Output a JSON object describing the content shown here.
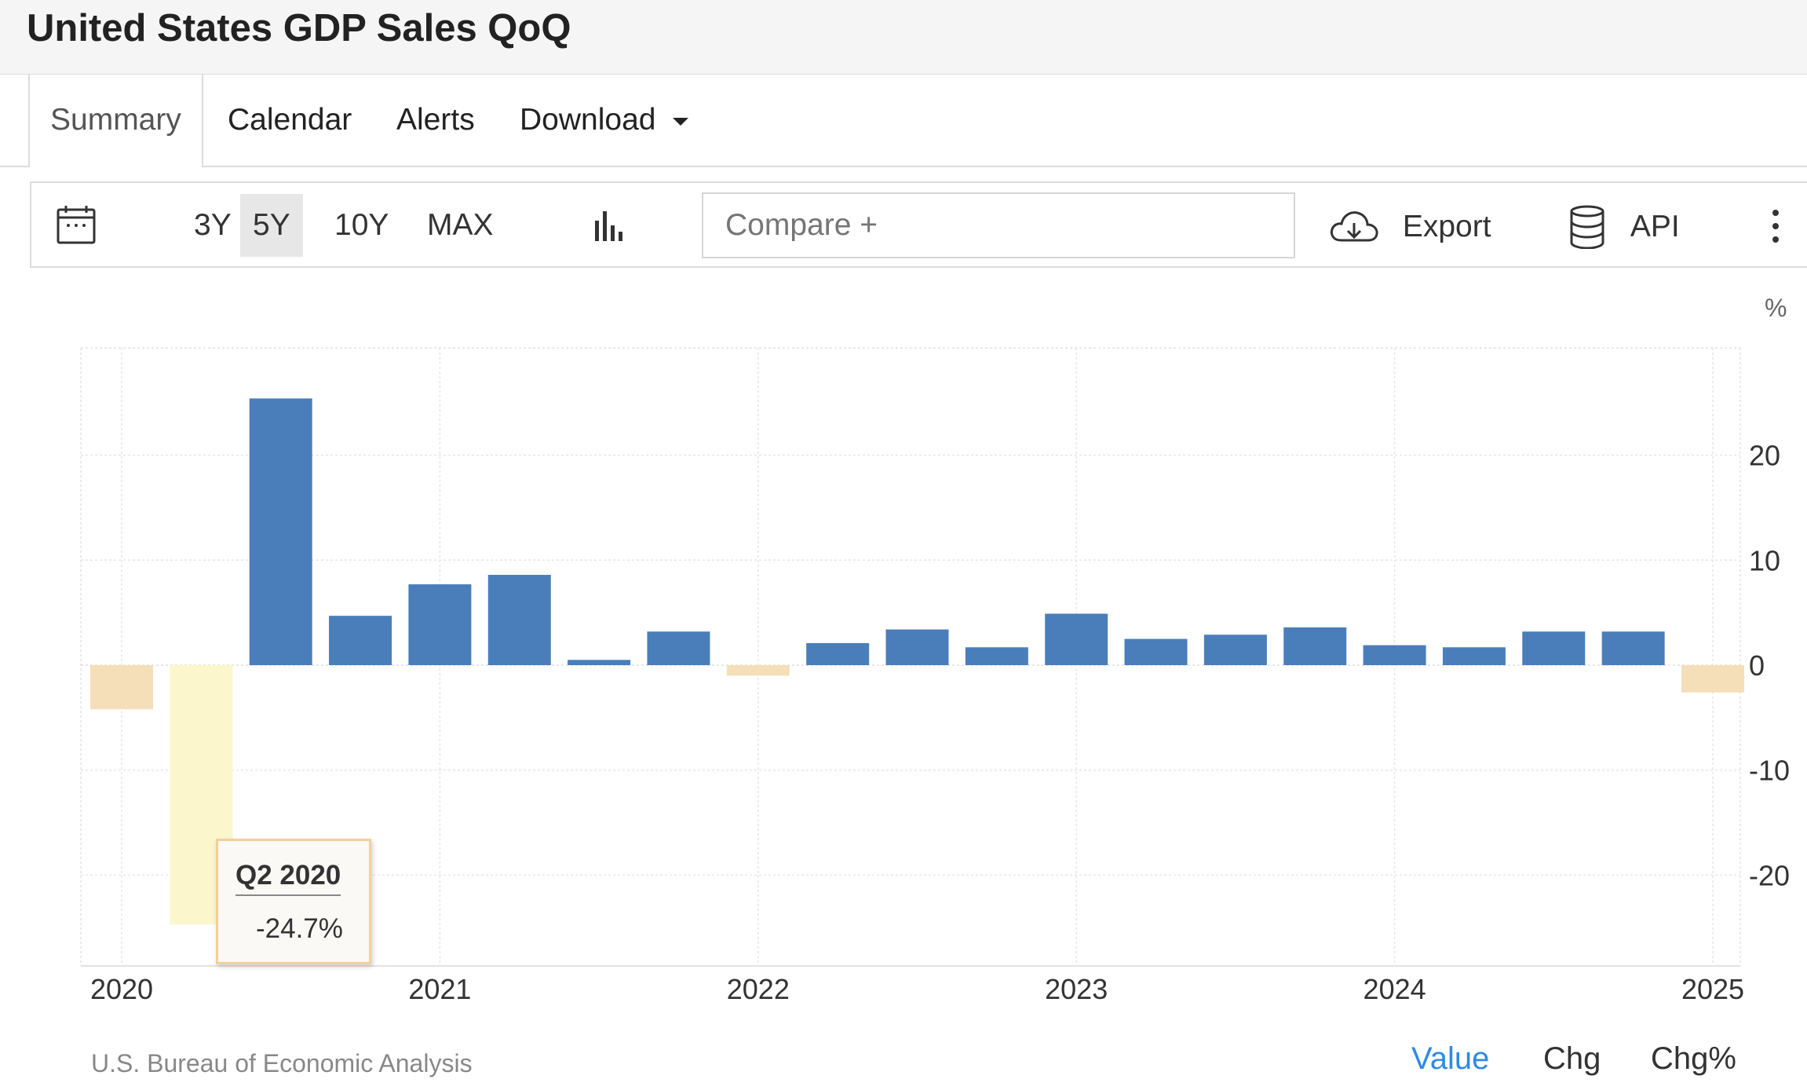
{
  "header": {
    "title": "United States GDP Sales QoQ"
  },
  "tabs": [
    {
      "label": "Summary",
      "active": true
    },
    {
      "label": "Calendar"
    },
    {
      "label": "Alerts"
    },
    {
      "label": "Download",
      "has_dropdown": true
    }
  ],
  "toolbar": {
    "ranges": [
      {
        "label": "3Y"
      },
      {
        "label": "5Y",
        "active": true
      },
      {
        "label": "10Y"
      },
      {
        "label": "MAX"
      }
    ],
    "compare_placeholder": "Compare +",
    "export_label": "Export",
    "api_label": "API",
    "icons": [
      "calendar-icon",
      "bar-chart-icon",
      "cloud-download-icon",
      "database-icon",
      "more-vertical-icon"
    ]
  },
  "chart_data": {
    "type": "bar",
    "unit": "%",
    "categories": [
      "Q1 2020",
      "Q2 2020",
      "Q3 2020",
      "Q4 2020",
      "Q1 2021",
      "Q2 2021",
      "Q3 2021",
      "Q4 2021",
      "Q1 2022",
      "Q2 2022",
      "Q3 2022",
      "Q4 2022",
      "Q1 2023",
      "Q2 2023",
      "Q3 2023",
      "Q4 2023",
      "Q1 2024",
      "Q2 2024",
      "Q3 2024",
      "Q4 2024",
      "Q1 2025"
    ],
    "values": [
      -4.2,
      -24.7,
      25.4,
      4.7,
      7.7,
      8.6,
      0.5,
      3.2,
      -1.0,
      2.1,
      3.4,
      1.7,
      4.9,
      2.5,
      2.9,
      3.6,
      1.9,
      1.7,
      3.2,
      3.2,
      -2.6
    ],
    "y_ticks": [
      20,
      10,
      0,
      -10,
      -20
    ],
    "x_ticks": [
      "2020",
      "2021",
      "2022",
      "2023",
      "2024",
      "2025"
    ],
    "ylim": [
      -28.5,
      30
    ],
    "grid": true,
    "colors": {
      "positive": "#4a7ebb",
      "negative": "#f5dfb8",
      "highlight": "#fcf6cd"
    },
    "tooltip": {
      "title": "Q2 2020",
      "value": "-24.7%"
    }
  },
  "footer": {
    "source": "U.S. Bureau of Economic Analysis",
    "modes": [
      {
        "label": "Value",
        "active": true
      },
      {
        "label": "Chg"
      },
      {
        "label": "Chg%"
      }
    ]
  }
}
